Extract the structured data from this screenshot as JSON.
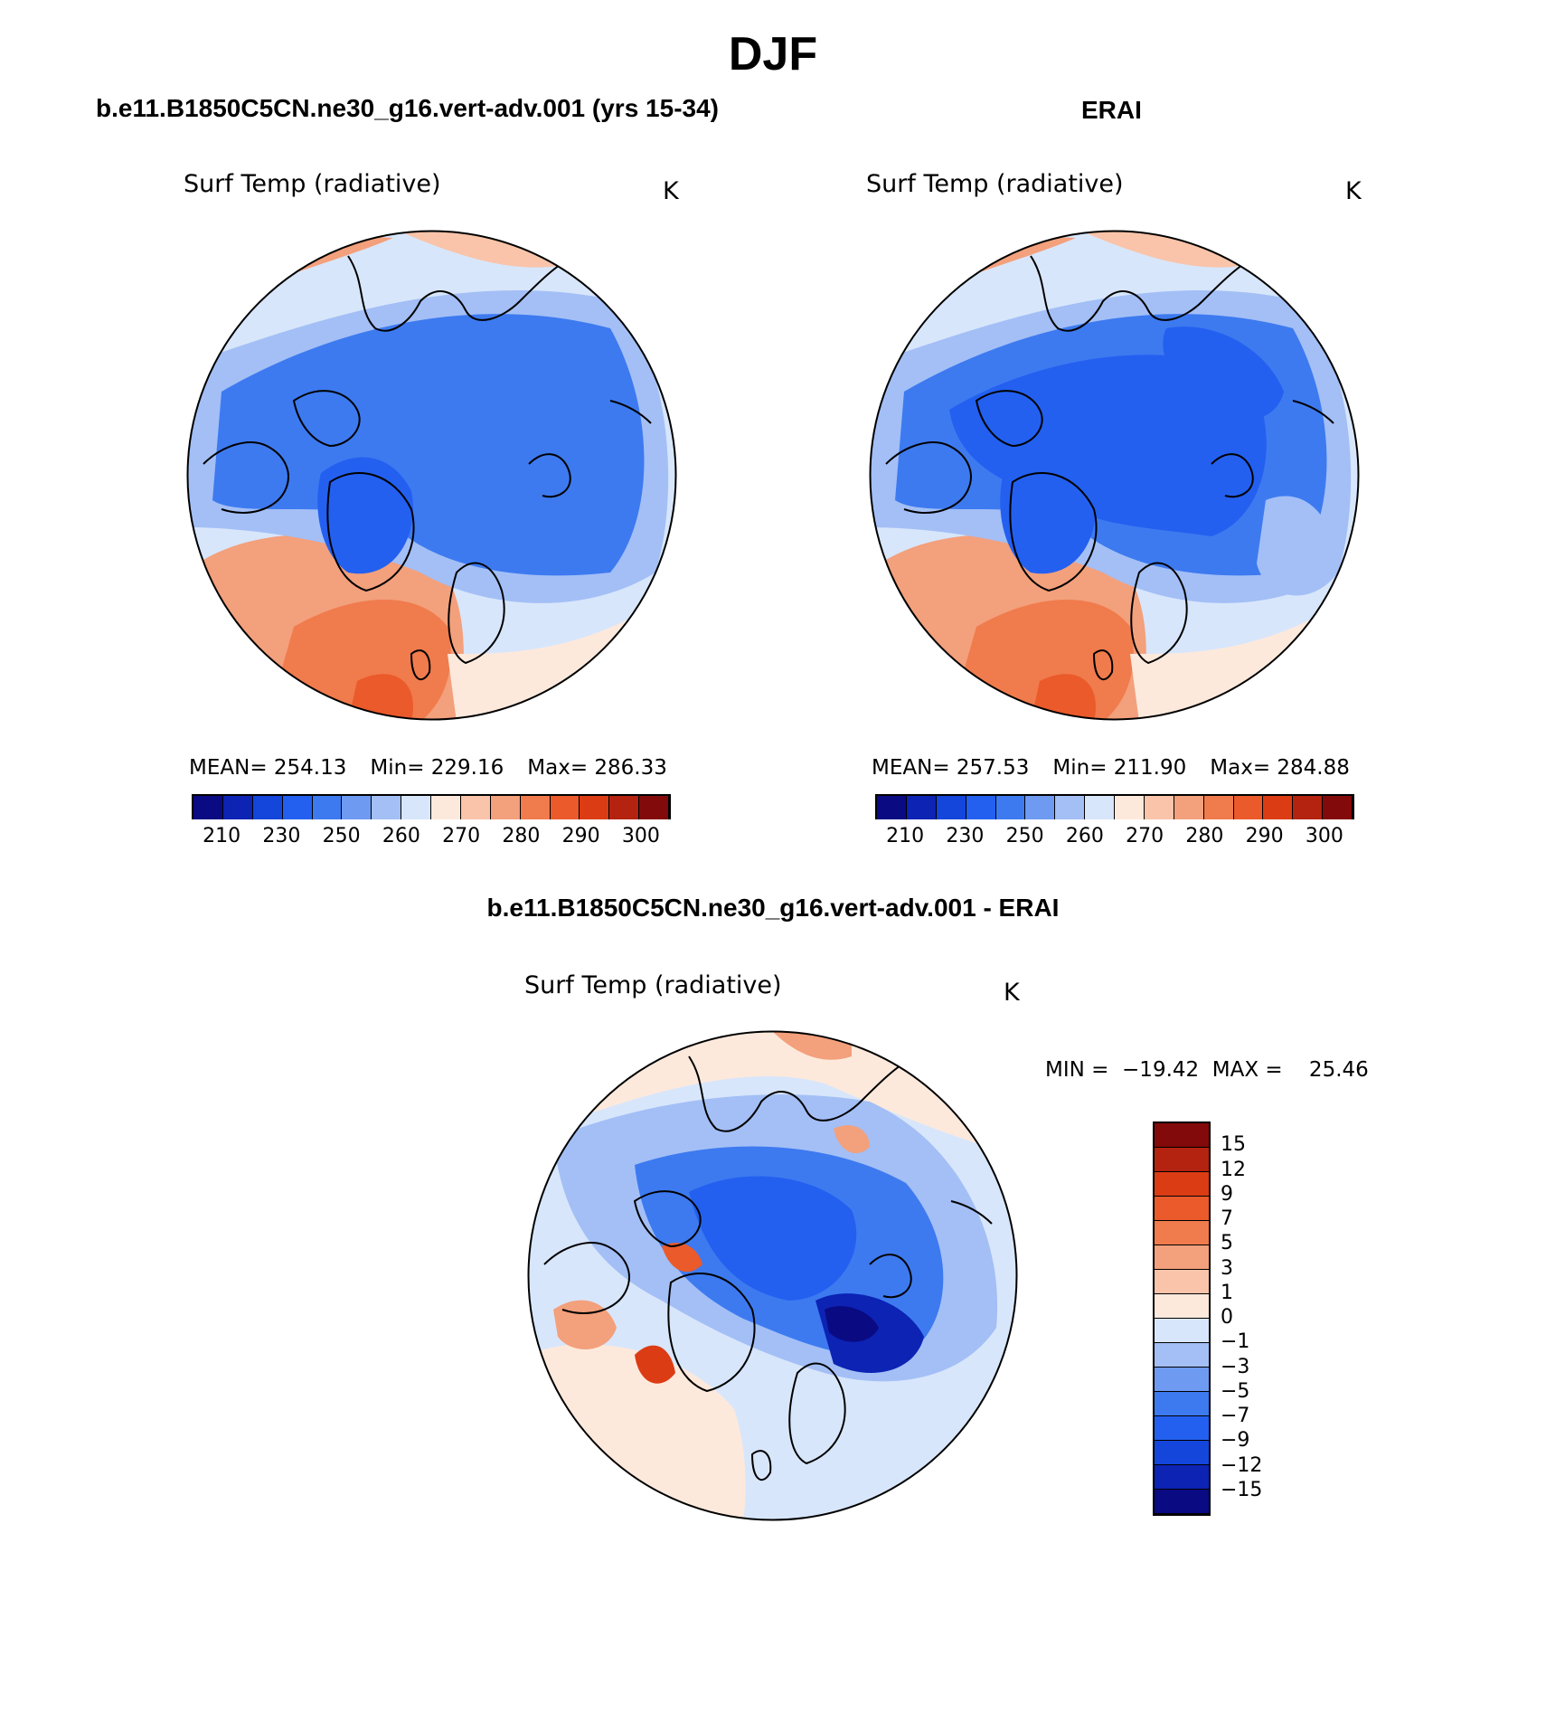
{
  "figure": {
    "title": "DJF",
    "panels": [
      {
        "id": "model",
        "title": "b.e11.B1850C5CN.ne30_g16.vert-adv.001 (yrs 15-34)",
        "variable_label": "Surf Temp (radiative)",
        "units": "K",
        "stats": {
          "mean": "MEAN=  254.13",
          "min": "Min=  229.16",
          "max": "Max=  286.33"
        }
      },
      {
        "id": "obs",
        "title": "ERAI",
        "variable_label": "Surf Temp (radiative)",
        "units": "K",
        "stats": {
          "mean": "MEAN=  257.53",
          "min": "Min=  211.90",
          "max": "Max=  284.88"
        }
      },
      {
        "id": "diff",
        "title": "b.e11.B1850C5CN.ne30_g16.vert-adv.001 - ERAI",
        "variable_label": "Surf Temp (radiative)",
        "units": "K",
        "minmax": "MIN =  −19.42  MAX =    25.46"
      }
    ]
  },
  "chart_data": [
    {
      "type": "heatmap",
      "projection": "north-polar-stereographic",
      "title": "b.e11.B1850C5CN.ne30_g16.vert-adv.001 (yrs 15-34)",
      "variable": "Surf Temp (radiative)",
      "units": "K",
      "mean": 254.13,
      "min": 229.16,
      "max": 286.33,
      "colorbar": {
        "orientation": "horizontal",
        "levels": [
          210,
          220,
          230,
          240,
          250,
          255,
          260,
          265,
          270,
          275,
          280,
          285,
          290,
          295,
          300
        ],
        "tick_labels": [
          "210",
          "230",
          "250",
          "260",
          "270",
          "280",
          "290",
          "300"
        ],
        "colors": [
          "#0a0a82",
          "#0c23b4",
          "#1446dc",
          "#2360f0",
          "#3d7af0",
          "#6e9af2",
          "#a3bff6",
          "#d8e6fb",
          "#fde9dc",
          "#f9c4a9",
          "#f3a07c",
          "#f07b4d",
          "#eb5a2a",
          "#dc3c14",
          "#b42310",
          "#820a0a"
        ]
      }
    },
    {
      "type": "heatmap",
      "projection": "north-polar-stereographic",
      "title": "ERAI",
      "variable": "Surf Temp (radiative)",
      "units": "K",
      "mean": 257.53,
      "min": 211.9,
      "max": 284.88,
      "colorbar": {
        "orientation": "horizontal",
        "levels": [
          210,
          220,
          230,
          240,
          250,
          255,
          260,
          265,
          270,
          275,
          280,
          285,
          290,
          295,
          300
        ],
        "tick_labels": [
          "210",
          "230",
          "250",
          "260",
          "270",
          "280",
          "290",
          "300"
        ],
        "colors": [
          "#0a0a82",
          "#0c23b4",
          "#1446dc",
          "#2360f0",
          "#3d7af0",
          "#6e9af2",
          "#a3bff6",
          "#d8e6fb",
          "#fde9dc",
          "#f9c4a9",
          "#f3a07c",
          "#f07b4d",
          "#eb5a2a",
          "#dc3c14",
          "#b42310",
          "#820a0a"
        ]
      }
    },
    {
      "type": "heatmap",
      "projection": "north-polar-stereographic",
      "title": "b.e11.B1850C5CN.ne30_g16.vert-adv.001 - ERAI",
      "variable": "Surf Temp (radiative)",
      "units": "K",
      "min": -19.42,
      "max": 25.46,
      "colorbar": {
        "orientation": "vertical",
        "tick_labels": [
          "15",
          "12",
          "9",
          "7",
          "5",
          "3",
          "1",
          "0",
          "−1",
          "−3",
          "−5",
          "−7",
          "−9",
          "−12",
          "−15"
        ],
        "colors": [
          "#820a0a",
          "#b42310",
          "#dc3c14",
          "#eb5a2a",
          "#f07b4d",
          "#f3a07c",
          "#f9c4a9",
          "#fde9dc",
          "#d8e6fb",
          "#a3bff6",
          "#6e9af2",
          "#3d7af0",
          "#2360f0",
          "#1446dc",
          "#0c23b4",
          "#0a0a82"
        ]
      }
    }
  ]
}
